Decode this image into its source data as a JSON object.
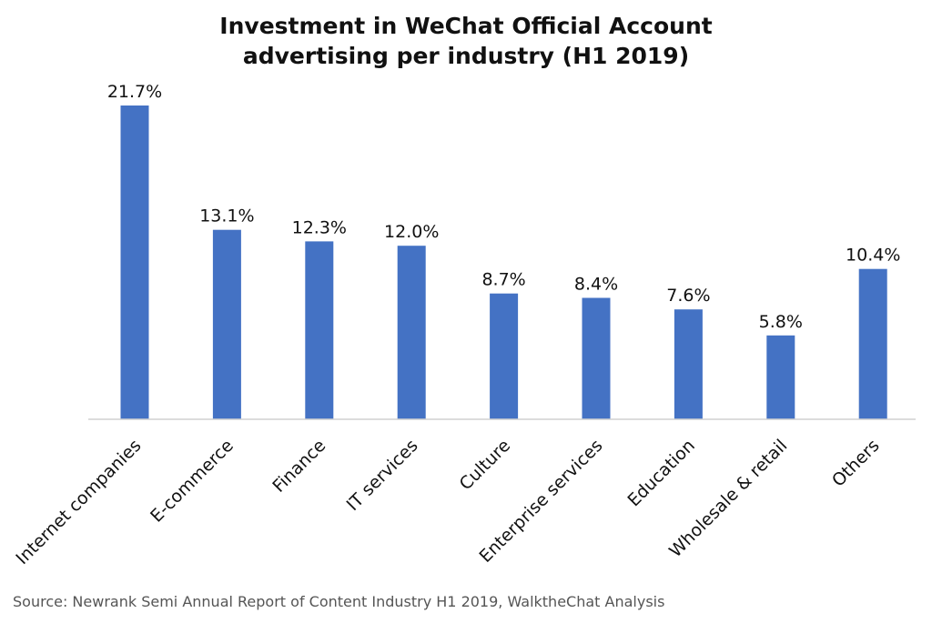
{
  "chart_data": {
    "type": "bar",
    "title_lines": [
      "Investment in WeChat Official Account",
      "advertising per industry (H1 2019)"
    ],
    "categories": [
      "Internet companies",
      "E-commerce",
      "Finance",
      "IT services",
      "Culture",
      "Enterprise services",
      "Education",
      "Wholesale & retail",
      "Others"
    ],
    "values": [
      21.7,
      13.1,
      12.3,
      12.0,
      8.7,
      8.4,
      7.6,
      5.8,
      10.4
    ],
    "data_labels": [
      "21.7%",
      "13.1%",
      "12.3%",
      "12.0%",
      "8.7%",
      "8.4%",
      "7.6%",
      "5.8%",
      "10.4%"
    ],
    "ylim": [
      0,
      21.7
    ],
    "grid": false,
    "legend": "none",
    "bar_color": "#4472C4",
    "source": "Source: Newrank Semi Annual Report of Content Industry H1 2019, WalktheChat Analysis"
  }
}
